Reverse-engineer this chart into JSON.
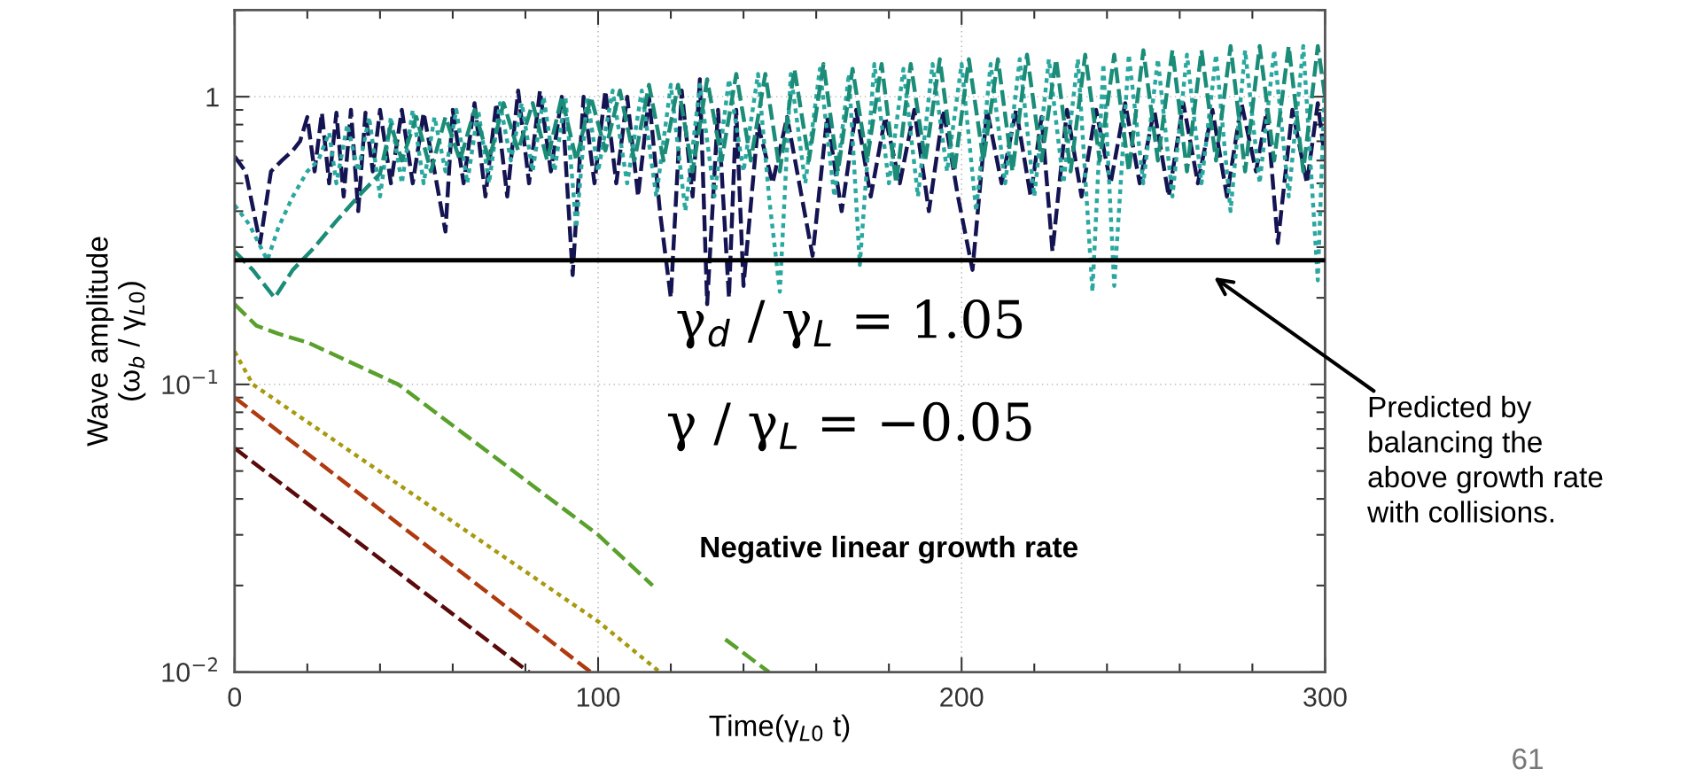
{
  "chart_data": {
    "type": "line",
    "xlabel": "Time(γ$_{L0}$ t)",
    "ylabel": "Wave amplitude\n(ω$_{b}$ / γ$_{L0}$)",
    "xlim": [
      0,
      300
    ],
    "xticks": [
      0,
      100,
      200,
      300
    ],
    "ylim": [
      0.01,
      2
    ],
    "yticks": [
      {
        "value": 0.01,
        "label": "10$^{−2}$"
      },
      {
        "value": 0.1,
        "label": "10$^{−1}$"
      },
      1
    ],
    "log": "y",
    "grid": true,
    "legend": false,
    "series": [
      {
        "color": "#141452",
        "line_style": "dashed",
        "x": [
          0,
          3,
          7,
          10,
          13,
          16,
          18,
          20,
          22,
          24,
          26,
          28,
          30,
          32,
          34,
          36,
          38,
          40,
          43,
          46,
          49,
          52,
          55,
          58,
          60,
          63,
          66,
          69,
          72,
          75,
          78,
          81,
          84,
          87,
          90,
          93,
          96,
          99,
          102,
          105,
          108,
          111,
          114,
          117,
          120,
          123,
          126,
          128,
          130,
          133,
          136,
          138,
          140,
          144,
          148,
          152,
          156,
          159,
          163,
          167,
          171,
          175,
          179,
          183,
          187,
          191,
          195,
          199,
          203,
          207,
          211,
          215,
          219,
          222,
          225,
          229,
          233,
          237,
          241,
          245,
          249,
          253,
          257,
          261,
          265,
          269,
          273,
          277,
          281,
          284,
          287,
          291,
          295,
          298,
          300
        ],
        "values": [
          0.62,
          0.55,
          0.31,
          0.55,
          0.6,
          0.65,
          0.7,
          0.85,
          0.55,
          0.88,
          0.5,
          0.88,
          0.45,
          0.9,
          0.4,
          0.88,
          0.55,
          0.9,
          0.5,
          0.9,
          0.5,
          0.88,
          0.55,
          0.34,
          0.9,
          0.5,
          0.95,
          0.45,
          0.95,
          0.45,
          1.05,
          0.5,
          1.05,
          0.55,
          1.0,
          0.24,
          1.0,
          0.5,
          1.05,
          0.5,
          1.0,
          0.45,
          1.0,
          0.4,
          0.2,
          1.05,
          0.45,
          1.15,
          0.19,
          0.9,
          0.2,
          0.9,
          0.22,
          0.8,
          0.5,
          0.85,
          0.45,
          0.28,
          0.85,
          0.4,
          0.9,
          0.45,
          0.85,
          0.5,
          0.9,
          0.4,
          0.9,
          0.45,
          0.25,
          0.9,
          0.5,
          0.9,
          0.45,
          0.85,
          0.29,
          0.9,
          0.45,
          0.9,
          0.5,
          0.95,
          0.5,
          0.9,
          0.45,
          0.95,
          0.5,
          0.9,
          0.45,
          0.95,
          0.55,
          0.9,
          0.31,
          0.9,
          0.5,
          0.95,
          0.6
        ]
      },
      {
        "color": "#2aa8a0",
        "line_style": "dotted",
        "x": [
          0,
          4,
          9,
          12,
          16,
          20,
          23,
          26,
          28,
          31,
          34,
          37,
          40,
          43,
          46,
          49,
          52,
          55,
          58,
          61,
          64,
          67,
          70,
          73,
          76,
          79,
          82,
          85,
          88,
          91,
          94,
          97,
          100,
          104,
          108,
          112,
          116,
          120,
          124,
          128,
          132,
          136,
          140,
          144,
          147,
          150,
          153,
          157,
          161,
          165,
          169,
          172,
          176,
          180,
          184,
          188,
          192,
          196,
          200,
          204,
          208,
          212,
          216,
          220,
          224,
          228,
          232,
          236,
          239,
          242,
          246,
          250,
          254,
          258,
          262,
          266,
          270,
          274,
          278,
          282,
          286,
          290,
          294,
          298,
          300
        ],
        "values": [
          0.42,
          0.36,
          0.27,
          0.35,
          0.45,
          0.55,
          0.6,
          0.75,
          0.5,
          0.8,
          0.55,
          0.85,
          0.45,
          0.85,
          0.5,
          0.9,
          0.5,
          0.85,
          0.55,
          0.9,
          0.5,
          0.9,
          0.5,
          0.95,
          0.6,
          0.95,
          0.55,
          1.0,
          0.55,
          1.0,
          0.35,
          1.0,
          0.55,
          1.05,
          0.5,
          1.05,
          0.45,
          1.1,
          0.4,
          1.1,
          0.45,
          1.15,
          0.55,
          1.2,
          0.45,
          0.21,
          1.2,
          0.5,
          1.25,
          0.45,
          1.2,
          0.26,
          1.3,
          0.5,
          1.25,
          0.45,
          1.3,
          0.55,
          1.3,
          0.4,
          1.3,
          0.5,
          1.35,
          0.45,
          1.35,
          0.5,
          1.35,
          0.21,
          1.3,
          0.22,
          1.4,
          0.5,
          1.35,
          0.45,
          1.4,
          0.5,
          1.4,
          0.4,
          1.45,
          0.5,
          1.45,
          0.45,
          1.5,
          0.23,
          1.2
        ]
      },
      {
        "color": "#1a8c78",
        "line_style": "dashed",
        "x": [
          0,
          5,
          11,
          16,
          22,
          28,
          34,
          40,
          43,
          46,
          50,
          54,
          58,
          62,
          66,
          70,
          74,
          78,
          82,
          86,
          90,
          94,
          98,
          102,
          106,
          110,
          114,
          118,
          122,
          126,
          130,
          134,
          138,
          142,
          146,
          150,
          154,
          158,
          162,
          166,
          170,
          174,
          178,
          182,
          186,
          190,
          194,
          198,
          202,
          206,
          210,
          214,
          218,
          222,
          226,
          230,
          234,
          238,
          242,
          246,
          250,
          254,
          258,
          262,
          266,
          270,
          274,
          278,
          282,
          286,
          290,
          294,
          298,
          300
        ],
        "values": [
          0.29,
          0.25,
          0.2,
          0.25,
          0.3,
          0.37,
          0.45,
          0.54,
          0.8,
          0.6,
          0.85,
          0.55,
          0.85,
          0.6,
          0.9,
          0.6,
          0.95,
          0.65,
          0.95,
          0.6,
          1.0,
          0.6,
          1.0,
          0.65,
          1.05,
          0.6,
          1.1,
          0.6,
          1.1,
          0.55,
          1.15,
          0.6,
          1.2,
          0.6,
          1.2,
          0.55,
          1.25,
          0.6,
          1.3,
          0.55,
          1.25,
          0.6,
          1.3,
          0.5,
          1.3,
          0.6,
          1.35,
          0.55,
          1.35,
          0.6,
          1.35,
          0.55,
          1.4,
          0.6,
          1.35,
          0.55,
          1.4,
          0.6,
          1.4,
          0.55,
          1.45,
          0.6,
          1.45,
          0.55,
          1.45,
          0.6,
          1.5,
          0.55,
          1.5,
          0.6,
          1.5,
          0.55,
          1.5,
          1.0
        ]
      },
      {
        "color": "#5aa02c",
        "line_style": "dashed",
        "x": [
          0,
          6,
          12,
          20,
          45,
          100,
          115,
          125,
          135,
          147
        ],
        "values": [
          0.19,
          0.16,
          0.15,
          0.14,
          0.1,
          0.03,
          0.02,
          null,
          0.013,
          0.01
        ]
      },
      {
        "color": "#a89a10",
        "line_style": "dotted",
        "x": [
          0,
          5,
          100,
          117
        ],
        "values": [
          0.13,
          0.1,
          0.015,
          0.01
        ]
      },
      {
        "color": "#b03a10",
        "line_style": "dashed",
        "x": [
          0,
          98
        ],
        "values": [
          0.09,
          0.01
        ]
      },
      {
        "color": "#5a0a0a",
        "line_style": "dashed",
        "x": [
          0,
          81
        ],
        "values": [
          0.06,
          0.01
        ]
      }
    ],
    "ref_lines": [
      {
        "axis": "y",
        "value": 0.27,
        "color": "#000000",
        "line_style": "solid"
      }
    ],
    "annotations": [
      "Predicted by\nbalancing the\nabove growth rate\nwith collisions.",
      "γ$_{d}$ / γ$_{L}$ = 1.05",
      "γ / γ$_{L}$ = −0.05",
      "Negative linear growth rate",
      "61"
    ]
  }
}
